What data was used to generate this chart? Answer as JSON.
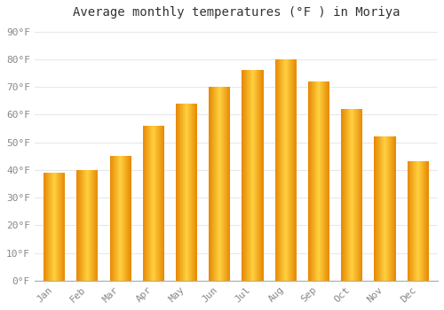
{
  "title": "Average monthly temperatures (°F ) in Moriya",
  "months": [
    "Jan",
    "Feb",
    "Mar",
    "Apr",
    "May",
    "Jun",
    "Jul",
    "Aug",
    "Sep",
    "Oct",
    "Nov",
    "Dec"
  ],
  "values": [
    39,
    40,
    45,
    56,
    64,
    70,
    76,
    80,
    72,
    62,
    52,
    43
  ],
  "bar_color": "#FFA500",
  "bar_edge_color": "#E08000",
  "bar_center_color": "#FFD040",
  "background_color": "#FFFFFF",
  "grid_color": "#E8E8E8",
  "yticks": [
    0,
    10,
    20,
    30,
    40,
    50,
    60,
    70,
    80,
    90
  ],
  "ylim": [
    0,
    93
  ],
  "title_fontsize": 10,
  "tick_fontsize": 8,
  "tick_color": "#888888",
  "spine_color": "#AAAAAA"
}
